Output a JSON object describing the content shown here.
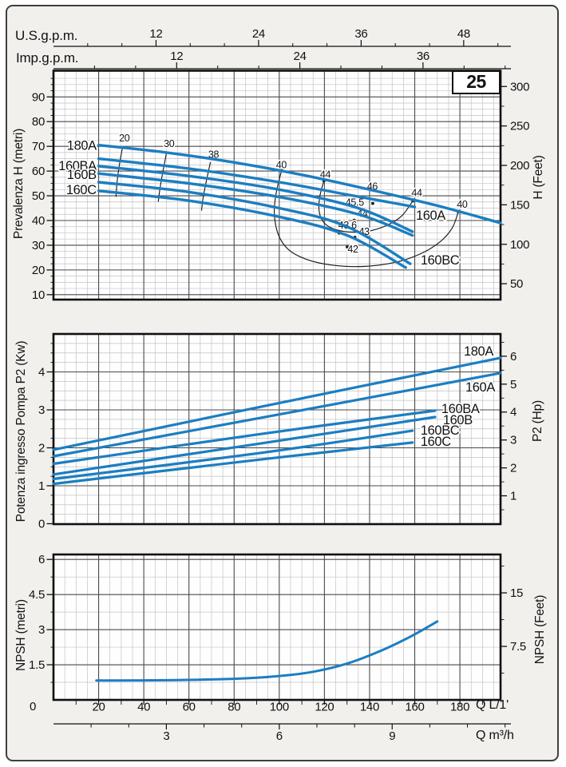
{
  "page": {
    "badge": "25"
  },
  "colors": {
    "curve": "#1b7ec2",
    "grid_minor": "#c3c3c3",
    "grid_major": "#4a4a4a",
    "frame": "#101010",
    "contour": "#1a1a1a",
    "text": "#111111",
    "plot_bg": "#fefefe",
    "page_bg": "#f1f0ed"
  },
  "top_scales": [
    {
      "title": "U.S.g.p.m.",
      "labels": [
        12,
        24,
        36,
        48
      ],
      "minor_step_units": 4,
      "lmin_per_unit": 3.785,
      "max_units": 53
    },
    {
      "title": "Imp.g.p.m.",
      "labels": [
        12,
        24,
        36
      ],
      "minor_step_units": 4,
      "lmin_per_unit": 4.546,
      "max_units": 44
    }
  ],
  "bottom_scales": {
    "lmin": {
      "title": "Q L/1'",
      "origin_label": "0",
      "labels": [
        20,
        40,
        60,
        80,
        100,
        120,
        140,
        160,
        180
      ],
      "minor_step": 10
    },
    "m3h": {
      "title": "Q m³/h",
      "labels": [
        3,
        6,
        9
      ],
      "minor_step_units": 1,
      "lmin_per_unit": 16.667,
      "max_units": 12
    }
  },
  "chart_data": [
    {
      "type": "line",
      "name": "head-vs-flow",
      "badge": "25",
      "xlabel": "Q L/1'",
      "x_range": [
        0,
        198
      ],
      "y_left": {
        "title": "Prevalenza H (metri)",
        "ticks": [
          10,
          20,
          30,
          40,
          50,
          60,
          70,
          80,
          90
        ],
        "range": [
          8,
          101
        ]
      },
      "y_right": {
        "title": "H (Feet)",
        "ticks": [
          50,
          100,
          150,
          200,
          250,
          300
        ]
      },
      "series": [
        {
          "name": "180A",
          "points": [
            [
              20,
              70.5
            ],
            [
              50,
              67.5
            ],
            [
              80,
              63.5
            ],
            [
              110,
              58.5
            ],
            [
              140,
              52.5
            ],
            [
              170,
              46
            ],
            [
              198,
              39
            ]
          ],
          "label_pos": [
            19,
            68.6
          ],
          "label_anchor": "end"
        },
        {
          "name": "160A",
          "points": [
            [
              20,
              65
            ],
            [
              60,
              61
            ],
            [
              100,
              55.5
            ],
            [
              130,
              50.5
            ],
            [
              148,
              47.5
            ],
            [
              160,
              45.5
            ]
          ],
          "label_pos": [
            160.5,
            40.3
          ],
          "label_anchor": "start"
        },
        {
          "name": "160BA",
          "points": [
            [
              20,
              62
            ],
            [
              60,
              58
            ],
            [
              100,
              52.5
            ],
            [
              135,
              45
            ],
            [
              159,
              35.5
            ]
          ],
          "label_pos": [
            19,
            60.4
          ],
          "label_anchor": "end"
        },
        {
          "name": "160B",
          "points": [
            [
              20,
              59
            ],
            [
              60,
              55
            ],
            [
              100,
              49.5
            ],
            [
              135,
              42.5
            ],
            [
              159,
              34
            ]
          ],
          "label_pos": [
            19,
            56.8
          ],
          "label_anchor": "end"
        },
        {
          "name": "160BC",
          "points": [
            [
              20,
              55.5
            ],
            [
              60,
              51.5
            ],
            [
              100,
              45
            ],
            [
              130,
              37.5
            ],
            [
              158,
              22.5
            ]
          ],
          "label_pos": [
            162.6,
            22.3
          ],
          "label_anchor": "start"
        },
        {
          "name": "160C",
          "points": [
            [
              20,
              52
            ],
            [
              60,
              48
            ],
            [
              100,
              41.5
            ],
            [
              130,
              34
            ],
            [
              156,
              21
            ]
          ],
          "label_pos": [
            19,
            50.7
          ],
          "label_anchor": "end"
        }
      ],
      "efficiency_contours": [
        {
          "labels": [
            {
              "text": "20",
              "pos": [
                31.4,
                72.0
              ]
            }
          ],
          "points": [
            [
              30.5,
              69.3
            ],
            [
              29.1,
              62
            ],
            [
              28.1,
              55
            ],
            [
              27.7,
              49.6
            ]
          ],
          "dots": []
        },
        {
          "labels": [
            {
              "text": "30",
              "pos": [
                51.2,
                69.8
              ]
            }
          ],
          "points": [
            [
              50,
              67.1
            ],
            [
              48.3,
              59
            ],
            [
              47.1,
              52.5
            ],
            [
              46.4,
              47.6
            ]
          ],
          "dots": []
        },
        {
          "labels": [
            {
              "text": "38",
              "pos": [
                70.9,
                65.4
              ]
            }
          ],
          "points": [
            [
              69.5,
              63.6
            ],
            [
              67.6,
              55.5
            ],
            [
              66.2,
              48.8
            ],
            [
              65.6,
              44.0
            ]
          ],
          "dots": []
        },
        {
          "labels": [
            {
              "text": "40",
              "pos": [
                100.9,
                61.2
              ]
            },
            {
              "text": "40",
              "pos": [
                181.0,
                45.2
              ]
            }
          ],
          "points": [
            [
              101,
              60.2
            ],
            [
              98.6,
              51
            ],
            [
              97.8,
              43
            ],
            [
              99.5,
              34.5
            ],
            [
              104,
              28.3
            ],
            [
              112,
              24.3
            ],
            [
              123,
              22.0
            ],
            [
              137,
              21.4
            ],
            [
              151,
              23.0
            ],
            [
              162,
              26.3
            ],
            [
              171,
              31.2
            ],
            [
              176.6,
              37.0
            ],
            [
              179.3,
              43.6
            ]
          ],
          "dots": [
            [
              101,
              60.2
            ],
            [
              179.3,
              43.6
            ]
          ]
        },
        {
          "labels": [
            {
              "text": "44",
              "pos": [
                120.4,
                57.3
              ]
            },
            {
              "text": "44",
              "pos": [
                160.9,
                49.9
              ]
            }
          ],
          "points": [
            [
              119.8,
              56.1
            ],
            [
              117.9,
              49.5
            ],
            [
              117.7,
              43.5
            ],
            [
              119.9,
              39.0
            ],
            [
              125,
              36.3
            ],
            [
              133,
              35.3
            ],
            [
              141,
              36.0
            ],
            [
              148.5,
              38.4
            ],
            [
              154.4,
              42.0
            ],
            [
              159.2,
              48.0
            ]
          ],
          "dots": [
            [
              119.8,
              56.1
            ],
            [
              159.2,
              48.0
            ]
          ]
        }
      ],
      "efficiency_points": [
        {
          "label": "46",
          "pos": [
            141.2,
            52.4
          ],
          "dot": [
            141.4,
            46.9
          ]
        },
        {
          "label": "45.5",
          "pos": [
            133.4,
            45.9
          ],
          "dot": [
            136.6,
            47.4
          ]
        },
        {
          "label": "44",
          "pos": [
            136.8,
            41.5
          ],
          "dot": [
            133.2,
            40.1
          ]
        },
        {
          "label": "43.6",
          "pos": [
            130.2,
            36.7
          ],
          "dot": [
            126.5,
            34.9
          ]
        },
        {
          "label": "43",
          "pos": [
            137.6,
            34.1
          ],
          "dot": [
            133.5,
            33.2
          ]
        },
        {
          "label": "42",
          "pos": [
            132.6,
            27.0
          ],
          "dot": [
            130.1,
            29.3
          ]
        }
      ]
    },
    {
      "type": "line",
      "name": "power-vs-flow",
      "xlabel": "Q L/1'",
      "x_range": [
        0,
        198
      ],
      "y_left": {
        "title": "Potenza ingresso Pompa P2 (Kw)",
        "ticks": [
          0,
          1,
          2,
          3,
          4
        ],
        "range": [
          0,
          5
        ]
      },
      "y_right": {
        "title": "P2 (Hp)",
        "ticks": [
          1,
          2,
          3,
          4,
          5,
          6
        ]
      },
      "series": [
        {
          "name": "180A",
          "points": [
            [
              0,
              1.95
            ],
            [
              100,
              3.18
            ],
            [
              198,
              4.37
            ]
          ],
          "label_pos": [
            194.8,
            4.43
          ],
          "label_anchor": "end"
        },
        {
          "name": "160A",
          "points": [
            [
              0,
              1.78
            ],
            [
              100,
              2.88
            ],
            [
              198,
              3.97
            ]
          ],
          "label_pos": [
            195.5,
            3.48
          ],
          "label_anchor": "end"
        },
        {
          "name": "160BA",
          "points": [
            [
              0,
              1.58
            ],
            [
              90,
              2.35
            ],
            [
              169,
              2.98
            ]
          ],
          "label_pos": [
            171.8,
            2.92
          ],
          "label_anchor": "start"
        },
        {
          "name": "160B",
          "points": [
            [
              0,
              1.3
            ],
            [
              90,
              2.1
            ],
            [
              169,
              2.81
            ]
          ],
          "label_pos": [
            172.5,
            2.62
          ],
          "label_anchor": "start"
        },
        {
          "name": "160BC",
          "points": [
            [
              0,
              1.18
            ],
            [
              90,
              1.85
            ],
            [
              159,
              2.45
            ]
          ],
          "label_pos": [
            162.6,
            2.35
          ],
          "label_anchor": "start"
        },
        {
          "name": "160C",
          "points": [
            [
              0,
              1.05
            ],
            [
              90,
              1.68
            ],
            [
              159,
              2.14
            ]
          ],
          "label_pos": [
            162.6,
            2.05
          ],
          "label_anchor": "start"
        }
      ]
    },
    {
      "type": "line",
      "name": "npsh-vs-flow",
      "xlabel": "Q L/1'",
      "x_range": [
        0,
        198
      ],
      "y_left": {
        "title": "NPSH (metri)",
        "ticks": [
          0,
          1.5,
          3,
          4.5,
          6
        ],
        "range": [
          0,
          6.2
        ]
      },
      "y_right": {
        "title": "NPSH (Feet)",
        "ticks": [
          7.5,
          15
        ]
      },
      "series": [
        {
          "name": "NPSH",
          "points": [
            [
              19,
              0.83
            ],
            [
              50,
              0.84
            ],
            [
              80,
              0.9
            ],
            [
              100,
              1.02
            ],
            [
              115,
              1.2
            ],
            [
              130,
              1.55
            ],
            [
              145,
              2.1
            ],
            [
              158,
              2.7
            ],
            [
              170,
              3.35
            ]
          ]
        }
      ]
    }
  ]
}
